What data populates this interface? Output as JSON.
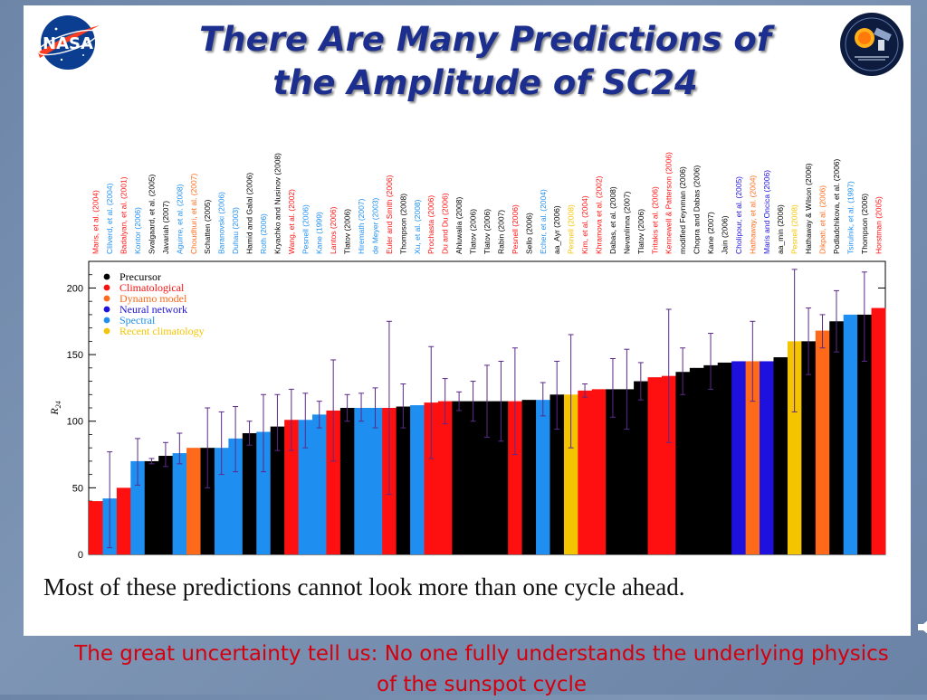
{
  "slide": {
    "title_line1": "There Are Many Predictions of",
    "title_line2": "the Amplitude of SC24",
    "caption": "Most of these predictions cannot look more than one cycle ahead.",
    "footer_line1": "The great uncertainty tell us: No one fully understands the underlying physics",
    "footer_line2": "of the sunspot cycle",
    "logos": [
      "nasa-logo",
      "solar-dynamics-observatory-logo"
    ]
  },
  "chart_data": {
    "type": "bar",
    "ylabel": "R24",
    "ylim": [
      0,
      220
    ],
    "yticks": [
      0,
      50,
      100,
      150,
      200
    ],
    "legend_position": "top-left",
    "category_colors": {
      "Precursor": "#000000",
      "Climatological": "#ff1010",
      "Dynamo model": "#ff6a1a",
      "Neural network": "#1e10dd",
      "Spectral": "#1e8ff0",
      "Recent climatology": "#f5c400"
    },
    "legend": [
      {
        "label": "Precursor",
        "category": "Precursor"
      },
      {
        "label": "Climatological",
        "category": "Climatological"
      },
      {
        "label": "Dynamo model",
        "category": "Dynamo model"
      },
      {
        "label": "Neural network",
        "category": "Neural network"
      },
      {
        "label": "Spectral",
        "category": "Spectral"
      },
      {
        "label": "Recent climatology",
        "category": "Recent climatology"
      }
    ],
    "bars": [
      {
        "label": "Maris, et al. (2004)",
        "value": 40,
        "category": "Climatological"
      },
      {
        "label": "Clilverd, et al. (2004)",
        "value": 42,
        "category": "Spectral",
        "err": [
          5,
          77
        ]
      },
      {
        "label": "Badalyan, et al. (2001)",
        "value": 50,
        "category": "Climatological"
      },
      {
        "label": "Kontor (2006)",
        "value": 70,
        "category": "Spectral",
        "err": [
          52,
          87
        ]
      },
      {
        "label": "Svalgaard, et al. (2005)",
        "value": 70,
        "category": "Precursor",
        "err": [
          68,
          72
        ]
      },
      {
        "label": "Javariah (2007)",
        "value": 74,
        "category": "Precursor",
        "err": [
          66,
          84
        ]
      },
      {
        "label": "Aguirre, et al. (2008)",
        "value": 76,
        "category": "Spectral",
        "err": [
          68,
          91
        ]
      },
      {
        "label": "Choudhuri, et al. (2007)",
        "value": 80,
        "category": "Dynamo model"
      },
      {
        "label": "Schatten (2005)",
        "value": 80,
        "category": "Precursor",
        "err": [
          50,
          110
        ]
      },
      {
        "label": "Baranovski (2006)",
        "value": 80,
        "category": "Spectral",
        "err": [
          60,
          107
        ]
      },
      {
        "label": "Duhau (2003)",
        "value": 87,
        "category": "Spectral",
        "err": [
          62,
          111
        ]
      },
      {
        "label": "Hamid and Galal (2006)",
        "value": 91,
        "category": "Precursor",
        "err": [
          82,
          100
        ]
      },
      {
        "label": "Roth (2006)",
        "value": 92,
        "category": "Spectral",
        "err": [
          62,
          120
        ]
      },
      {
        "label": "Kryachko and Nusinov (2008)",
        "value": 96,
        "category": "Precursor",
        "err": [
          78,
          120
        ]
      },
      {
        "label": "Wang, et al. (2002)",
        "value": 101,
        "category": "Climatological",
        "err": [
          78,
          124
        ]
      },
      {
        "label": "Pesnell (2006)",
        "value": 101,
        "category": "Spectral",
        "err": [
          80,
          121
        ]
      },
      {
        "label": "Kane (1999)",
        "value": 105,
        "category": "Spectral",
        "err": [
          95,
          115
        ]
      },
      {
        "label": "Lantos (2006)",
        "value": 108,
        "category": "Climatological",
        "err": [
          70,
          146
        ]
      },
      {
        "label": "Tlatov (2006)",
        "value": 110,
        "category": "Precursor",
        "err": [
          100,
          120
        ]
      },
      {
        "label": "Hiremath (2007)",
        "value": 110,
        "category": "Spectral",
        "err": [
          100,
          121
        ]
      },
      {
        "label": "de Meyer (2003)",
        "value": 110,
        "category": "Spectral",
        "err": [
          95,
          125
        ]
      },
      {
        "label": "Euler and Smith (2006)",
        "value": 110,
        "category": "Climatological",
        "err": [
          45,
          175
        ]
      },
      {
        "label": "Thompson (2008)",
        "value": 111,
        "category": "Precursor",
        "err": [
          95,
          128
        ]
      },
      {
        "label": "Xu, et al. (2008)",
        "value": 112,
        "category": "Spectral"
      },
      {
        "label": "Prochasta (2006)",
        "value": 114,
        "category": "Climatological",
        "err": [
          72,
          156
        ]
      },
      {
        "label": "Du and Du (2006)",
        "value": 115,
        "category": "Climatological",
        "err": [
          98,
          132
        ]
      },
      {
        "label": "Ahluwalia (2008)",
        "value": 115,
        "category": "Precursor",
        "err": [
          108,
          122
        ]
      },
      {
        "label": "Tlatov (2006)",
        "value": 115,
        "category": "Precursor",
        "err": [
          100,
          130
        ]
      },
      {
        "label": "Tlatov (2006)",
        "value": 115,
        "category": "Precursor",
        "err": [
          88,
          142
        ]
      },
      {
        "label": "Rabin (2007)",
        "value": 115,
        "category": "Precursor",
        "err": [
          85,
          145
        ]
      },
      {
        "label": "Pesnell (2006)",
        "value": 115,
        "category": "Climatological",
        "err": [
          75,
          155
        ]
      },
      {
        "label": "Sello (2006)",
        "value": 116,
        "category": "Precursor"
      },
      {
        "label": "Echer, et al. (2004)",
        "value": 116,
        "category": "Spectral",
        "err": [
          104,
          129
        ]
      },
      {
        "label": "aa_Ayr (2006)",
        "value": 120,
        "category": "Precursor",
        "err": [
          94,
          145
        ]
      },
      {
        "label": "Pesnell (2008)",
        "value": 120,
        "category": "Recent climatology",
        "err": [
          80,
          165
        ]
      },
      {
        "label": "Kim, et al. (2004)",
        "value": 123,
        "category": "Climatological",
        "err": [
          118,
          128
        ]
      },
      {
        "label": "Khramova et al. (2002)",
        "value": 124,
        "category": "Climatological"
      },
      {
        "label": "Dabas, et al. (2008)",
        "value": 124,
        "category": "Precursor",
        "err": [
          103,
          147
        ]
      },
      {
        "label": "Nevanlinna (2007)",
        "value": 124,
        "category": "Precursor",
        "err": [
          94,
          154
        ]
      },
      {
        "label": "Tlatov (2006)",
        "value": 130,
        "category": "Precursor",
        "err": [
          116,
          144
        ]
      },
      {
        "label": "Tritakis et al. (2006)",
        "value": 133,
        "category": "Climatological"
      },
      {
        "label": "Kennewell & Patterson (2006)",
        "value": 134,
        "category": "Climatological",
        "err": [
          84,
          184
        ]
      },
      {
        "label": "modified Feynman (2006)",
        "value": 137,
        "category": "Precursor",
        "err": [
          120,
          155
        ]
      },
      {
        "label": "Chopra and Dabas (2006)",
        "value": 140,
        "category": "Precursor"
      },
      {
        "label": "Kane (2007)",
        "value": 142,
        "category": "Precursor",
        "err": [
          124,
          166
        ]
      },
      {
        "label": "Jain (2006)",
        "value": 144,
        "category": "Precursor"
      },
      {
        "label": "Cholipour, et al. (2005)",
        "value": 145,
        "category": "Neural network"
      },
      {
        "label": "Hathaway, et al. (2004)",
        "value": 145,
        "category": "Dynamo model",
        "err": [
          115,
          175
        ]
      },
      {
        "label": "Maris and Oncica (2006)",
        "value": 145,
        "category": "Neural network"
      },
      {
        "label": "aa_min (2006)",
        "value": 148,
        "category": "Precursor"
      },
      {
        "label": "Pesnell (2008)",
        "value": 160,
        "category": "Recent climatology",
        "err": [
          107,
          214
        ]
      },
      {
        "label": "Hathaway & Wilson (2006)",
        "value": 160,
        "category": "Precursor",
        "err": [
          135,
          185
        ]
      },
      {
        "label": "Dikpati, et al. (2006)",
        "value": 168,
        "category": "Dynamo model",
        "err": [
          155,
          180
        ]
      },
      {
        "label": "Podladchikova, et al. (2006)",
        "value": 175,
        "category": "Precursor",
        "err": [
          152,
          198
        ]
      },
      {
        "label": "Tsirulnik, et al. (1997)",
        "value": 180,
        "category": "Spectral"
      },
      {
        "label": "Thompson (2006)",
        "value": 180,
        "category": "Precursor",
        "err": [
          145,
          212
        ]
      },
      {
        "label": "Horstman (2005)",
        "value": 185,
        "category": "Climatological"
      }
    ]
  }
}
